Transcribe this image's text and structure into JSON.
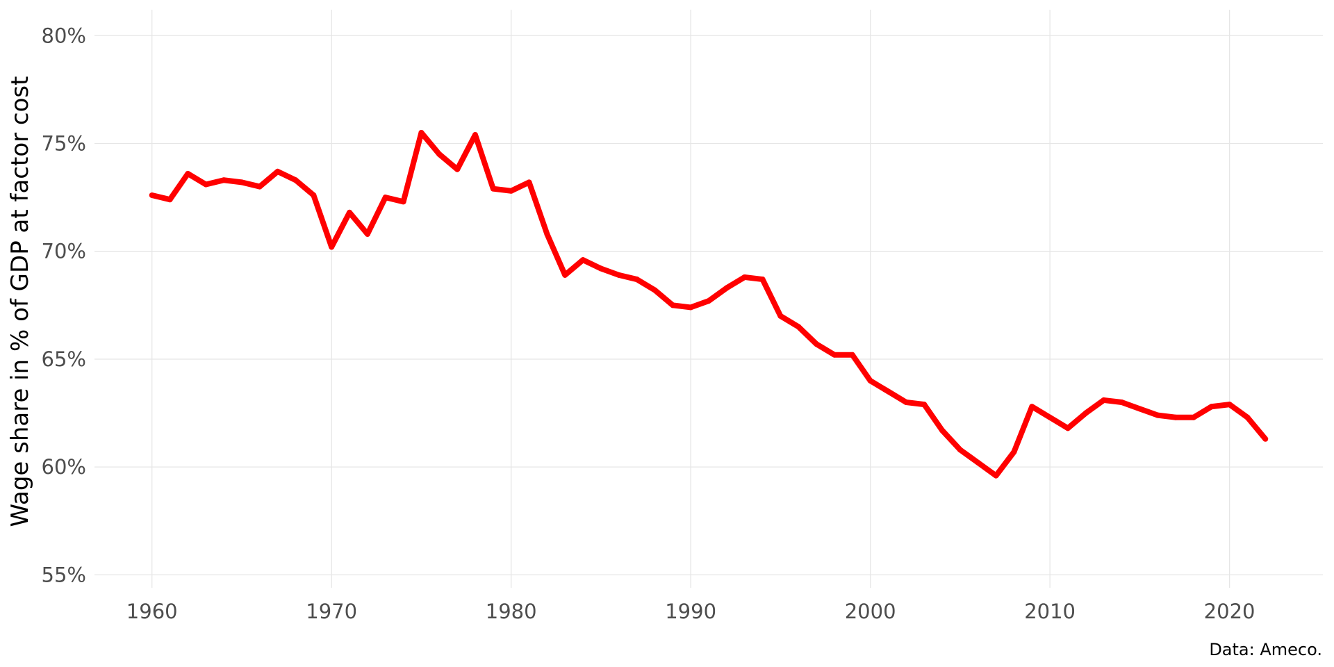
{
  "chart_data": {
    "type": "line",
    "title": "",
    "xlabel": "",
    "ylabel": "Wage share in % of GDP at factor cost",
    "caption": "Data: Ameco.",
    "xlim": [
      1956.8,
      2025.2
    ],
    "ylim": [
      54.4,
      81.2
    ],
    "x_ticks": [
      1960,
      1970,
      1980,
      1990,
      2000,
      2010,
      2020
    ],
    "x_tick_labels": [
      "1960",
      "1970",
      "1980",
      "1990",
      "2000",
      "2010",
      "2020"
    ],
    "y_ticks": [
      55,
      60,
      65,
      70,
      75,
      80
    ],
    "y_tick_labels": [
      "55%",
      "60%",
      "65%",
      "70%",
      "75%",
      "80%"
    ],
    "grid": true,
    "legend": "none",
    "series": [
      {
        "color": "#ff0000",
        "x": [
          1960,
          1961,
          1962,
          1963,
          1964,
          1965,
          1966,
          1967,
          1968,
          1969,
          1970,
          1971,
          1972,
          1973,
          1974,
          1975,
          1976,
          1977,
          1978,
          1979,
          1980,
          1981,
          1982,
          1983,
          1984,
          1985,
          1986,
          1987,
          1988,
          1989,
          1990,
          1991,
          1992,
          1993,
          1994,
          1995,
          1996,
          1997,
          1998,
          1999,
          2000,
          2001,
          2002,
          2003,
          2004,
          2005,
          2006,
          2007,
          2008,
          2009,
          2010,
          2011,
          2012,
          2013,
          2014,
          2015,
          2016,
          2017,
          2018,
          2019,
          2020,
          2021,
          2022
        ],
        "values": [
          72.6,
          72.4,
          73.6,
          73.1,
          73.3,
          73.2,
          73.0,
          73.7,
          73.3,
          72.6,
          70.2,
          71.8,
          70.8,
          72.5,
          72.3,
          75.5,
          74.5,
          73.8,
          75.4,
          72.9,
          72.8,
          73.2,
          70.8,
          68.9,
          69.6,
          69.2,
          68.9,
          68.7,
          68.2,
          67.5,
          67.4,
          67.7,
          68.3,
          68.8,
          68.7,
          67.0,
          66.5,
          65.7,
          65.2,
          65.2,
          64.0,
          63.5,
          63.0,
          62.9,
          61.7,
          60.8,
          60.2,
          59.6,
          60.7,
          62.8,
          62.3,
          61.8,
          62.5,
          63.1,
          63.0,
          62.7,
          62.4,
          62.3,
          62.3,
          62.8,
          62.9,
          62.3,
          61.3
        ]
      }
    ]
  }
}
